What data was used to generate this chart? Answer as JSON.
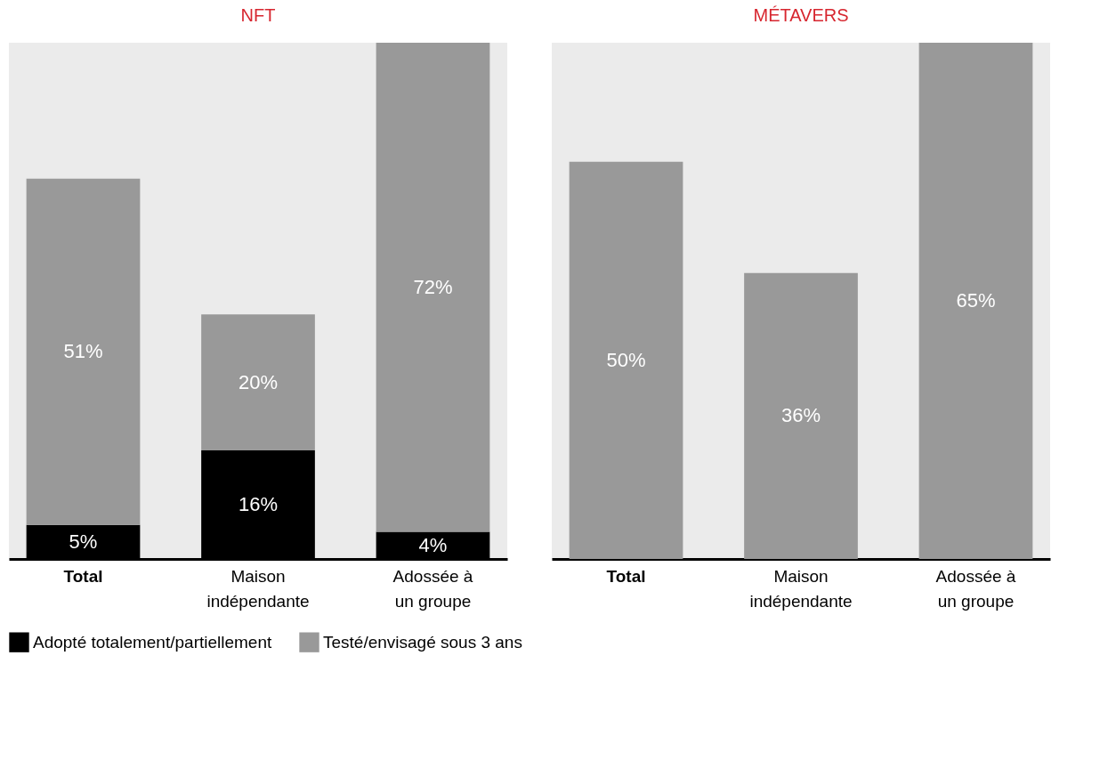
{
  "chart_data": [
    {
      "type": "bar",
      "title": "NFT",
      "stacked": true,
      "legend": "bottom",
      "categories": [
        "Total",
        "Maison indépendante",
        "Adossée à un groupe"
      ],
      "series": [
        {
          "name": "Adopté totalement/partiellement",
          "color": "#000000",
          "values": [
            5,
            16,
            4
          ],
          "value_labels": [
            "5%",
            "16%",
            "4%"
          ]
        },
        {
          "name": "Testé/envisagé sous 3 ans",
          "color": "#999999",
          "values": [
            51,
            20,
            72
          ],
          "value_labels": [
            "51%",
            "20%",
            "72%"
          ]
        }
      ]
    },
    {
      "type": "bar",
      "title": "MÉTAVERS",
      "stacked": true,
      "legend": "bottom",
      "categories": [
        "Total",
        "Maison indépendante",
        "Adossée à un groupe"
      ],
      "series": [
        {
          "name": "Adopté totalement/partiellement",
          "color": "#000000",
          "values": [
            null,
            null,
            null
          ]
        },
        {
          "name": "Testé/envisagé sous 3 ans",
          "color": "#999999",
          "values": [
            50,
            36,
            65
          ],
          "value_labels": [
            "50%",
            "36%",
            "65%"
          ]
        }
      ]
    }
  ]
}
